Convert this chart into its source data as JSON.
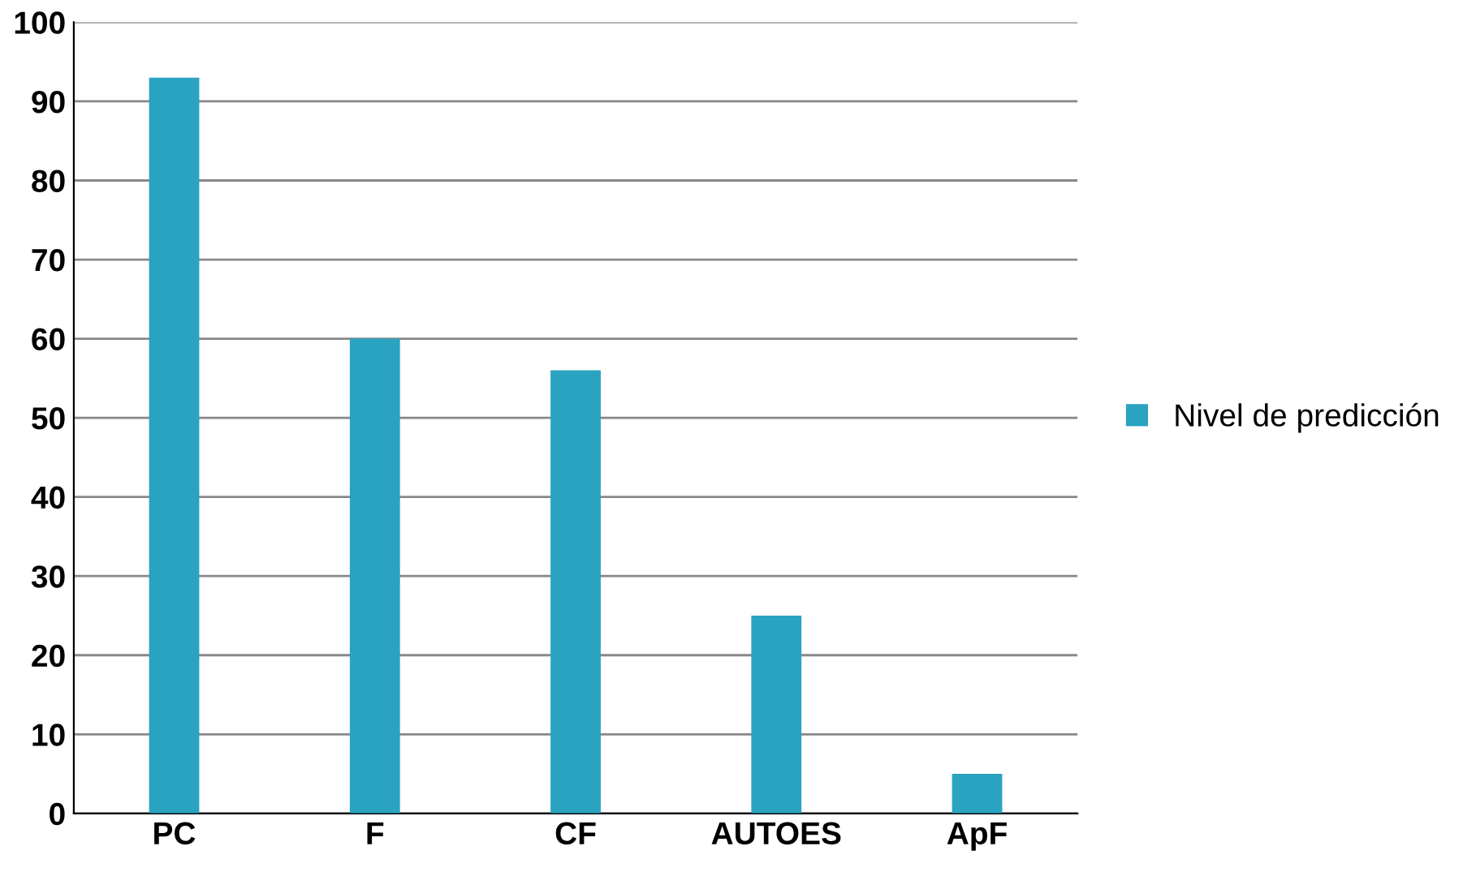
{
  "chart_data": {
    "type": "bar",
    "categories": [
      "PC",
      "F",
      "CF",
      "AUTOES",
      "ApF"
    ],
    "series": [
      {
        "name": "Nivel de predicción",
        "color": "#2aa3c1",
        "values": [
          93,
          60,
          56,
          25,
          5
        ]
      }
    ],
    "ylim": [
      0,
      100
    ],
    "yticks": [
      0,
      10,
      20,
      30,
      40,
      50,
      60,
      70,
      80,
      90,
      100
    ],
    "grid": "y",
    "legend": "right"
  }
}
